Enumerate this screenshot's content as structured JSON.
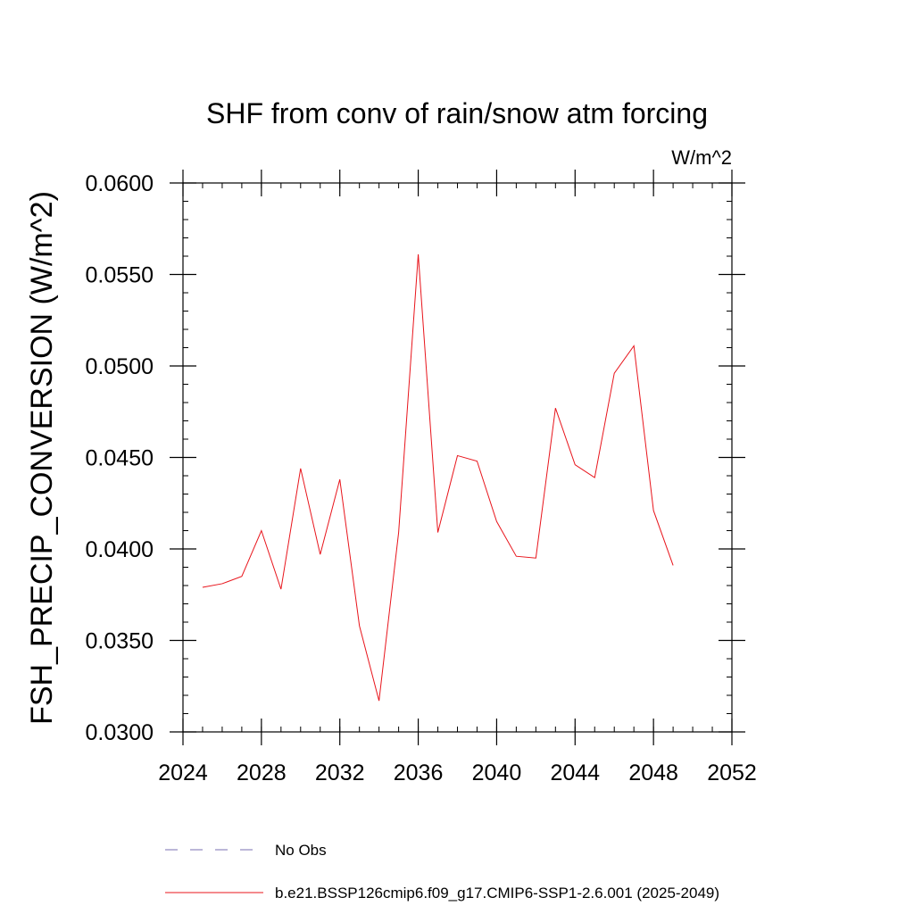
{
  "chart_data": {
    "type": "line",
    "title": "SHF from conv of rain/snow atm forcing",
    "units_label": "W/m^2",
    "xlabel": "",
    "ylabel": "FSH_PRECIP_CONVERSION  (W/m^2)",
    "xlim": [
      2024,
      2052
    ],
    "ylim": [
      0.03,
      0.06
    ],
    "x_ticks": [
      2024,
      2028,
      2032,
      2036,
      2040,
      2044,
      2048,
      2052
    ],
    "x_tick_labels": [
      "2024",
      "2028",
      "2032",
      "2036",
      "2040",
      "2044",
      "2048",
      "2052"
    ],
    "y_ticks": [
      0.03,
      0.035,
      0.04,
      0.045,
      0.05,
      0.055,
      0.06
    ],
    "y_tick_labels": [
      "0.0300",
      "0.0350",
      "0.0400",
      "0.0450",
      "0.0500",
      "0.0550",
      "0.0600"
    ],
    "grid": false,
    "legend_position": "bottom",
    "series": [
      {
        "name": "No Obs",
        "color": "#7a6fb0",
        "dash": "dashed",
        "x": [],
        "values": []
      },
      {
        "name": "b.e21.BSSP126cmip6.f09_g17.CMIP6-SSP1-2.6.001 (2025-2049)",
        "color": "#e8141b",
        "dash": "solid",
        "x": [
          2025,
          2026,
          2027,
          2028,
          2029,
          2030,
          2031,
          2032,
          2033,
          2034,
          2035,
          2036,
          2037,
          2038,
          2039,
          2040,
          2041,
          2042,
          2043,
          2044,
          2045,
          2046,
          2047,
          2048,
          2049
        ],
        "values": [
          0.0379,
          0.0381,
          0.0385,
          0.041,
          0.0378,
          0.0444,
          0.0397,
          0.0438,
          0.0358,
          0.0317,
          0.0409,
          0.0561,
          0.0409,
          0.0451,
          0.0448,
          0.0415,
          0.0396,
          0.0395,
          0.0477,
          0.0446,
          0.0439,
          0.0496,
          0.0511,
          0.0421,
          0.0391
        ]
      }
    ]
  }
}
